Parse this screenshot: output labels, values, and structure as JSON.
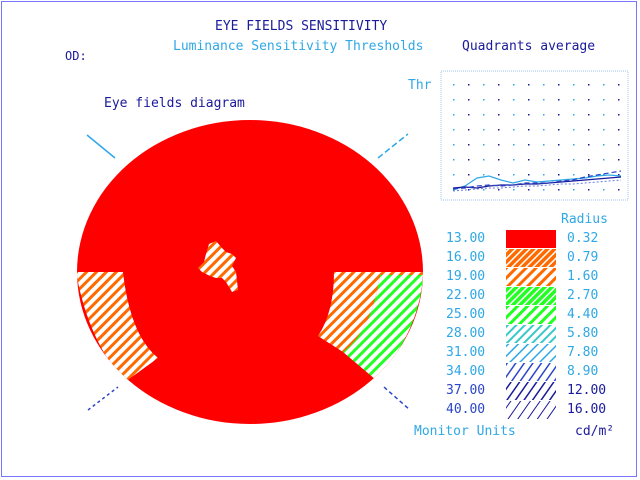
{
  "header": {
    "title": "EYE FIELDS SENSITIVITY",
    "subtitle": "Luminance Sensitivity Thresholds",
    "eye": "OD:"
  },
  "diagram": {
    "label": "Eye fields diagram"
  },
  "quadrants": {
    "title": "Quadrants average",
    "axis_label": "Thr"
  },
  "legend": {
    "radius_header": "Radius",
    "units_left": "Monitor Units",
    "units_right": "cd/m²",
    "entries": [
      {
        "threshold": "13.00",
        "radius": "0.32",
        "fill": "solid-red"
      },
      {
        "threshold": "16.00",
        "radius": "0.79",
        "fill": "hatch-orange-dense"
      },
      {
        "threshold": "19.00",
        "radius": "1.60",
        "fill": "hatch-orange"
      },
      {
        "threshold": "22.00",
        "radius": "2.70",
        "fill": "hatch-green-dense"
      },
      {
        "threshold": "25.00",
        "radius": "4.40",
        "fill": "hatch-green"
      },
      {
        "threshold": "28.00",
        "radius": "5.80",
        "fill": "hatch-cyan"
      },
      {
        "threshold": "31.00",
        "radius": "7.80",
        "fill": "hatch-cyan-light"
      },
      {
        "threshold": "34.00",
        "radius": "8.90",
        "fill": "hatch-blue"
      },
      {
        "threshold": "37.00",
        "radius": "12.00",
        "fill": "hatch-navy"
      },
      {
        "threshold": "40.00",
        "radius": "16.00",
        "fill": "hatch-navy-light"
      }
    ]
  },
  "colors": {
    "red": "#ff0000",
    "orange": "#ff6a00",
    "green": "#22ff22",
    "cyan": "#2fa8e6",
    "blue": "#2b46c8",
    "navy": "#1a1a9a"
  }
}
